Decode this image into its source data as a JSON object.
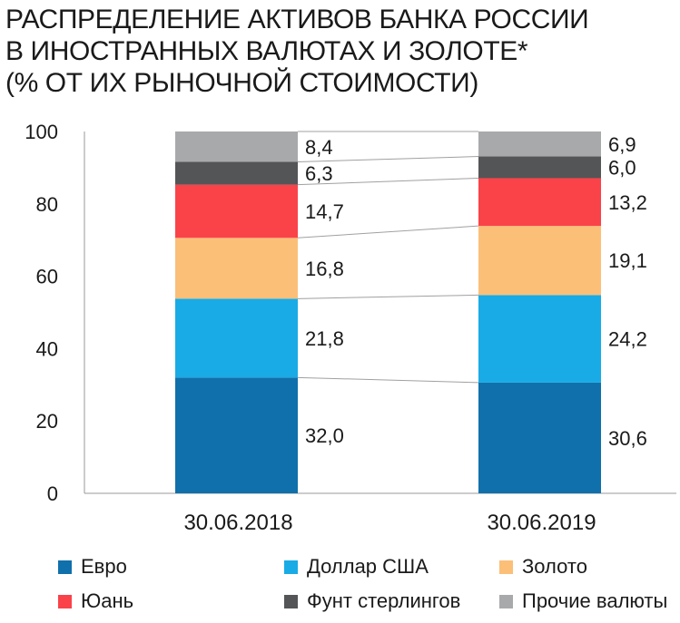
{
  "title_lines": [
    "РАСПРЕДЕЛЕНИЕ АКТИВОВ БАНКА РОССИИ",
    "В ИНОСТРАННЫХ ВАЛЮТАХ И ЗОЛОТЕ*",
    "(% ОТ ИХ РЫНОЧНОЙ СТОИМОСТИ)"
  ],
  "chart_data": {
    "type": "bar",
    "stacked": true,
    "categories": [
      "30.06.2018",
      "30.06.2019"
    ],
    "series": [
      {
        "name": "Евро",
        "values": [
          32.0,
          30.6
        ],
        "labels": [
          "32,0",
          "30,6"
        ],
        "color": "#1070ab"
      },
      {
        "name": "Доллар США",
        "values": [
          21.8,
          24.2
        ],
        "labels": [
          "21,8",
          "24,2"
        ],
        "color": "#18abe6"
      },
      {
        "name": "Золото",
        "values": [
          16.8,
          19.1
        ],
        "labels": [
          "16,8",
          "19,1"
        ],
        "color": "#fbbf78"
      },
      {
        "name": "Юань",
        "values": [
          14.7,
          13.2
        ],
        "labels": [
          "14,7",
          "13,2"
        ],
        "color": "#fa4249"
      },
      {
        "name": "Фунт стерлингов",
        "values": [
          6.3,
          6.0
        ],
        "labels": [
          "6,3",
          "6,0"
        ],
        "color": "#545556"
      },
      {
        "name": "Прочие валюты",
        "values": [
          8.4,
          6.9
        ],
        "labels": [
          "8,4",
          "6,9"
        ],
        "color": "#a8a9aa"
      }
    ],
    "ylim": [
      0,
      100
    ],
    "yticks": [
      0,
      20,
      40,
      60,
      80,
      100
    ],
    "ytick_labels": [
      "0",
      "20",
      "40",
      "60",
      "80",
      "100"
    ],
    "connector_lines": true,
    "grid": false,
    "legend_position": "bottom"
  }
}
